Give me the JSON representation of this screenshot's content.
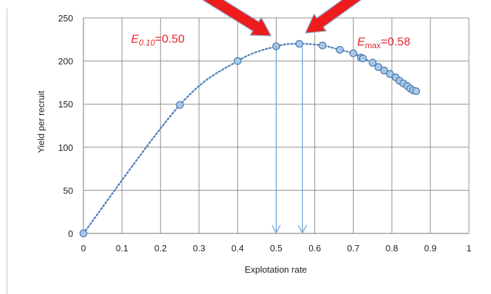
{
  "chart_data": {
    "type": "scatter",
    "title": "",
    "xlabel": "Explotation rate",
    "ylabel": "Yield per recruit",
    "xlim": [
      0,
      1
    ],
    "ylim": [
      0,
      250
    ],
    "x_ticks": [
      "0",
      "0.1",
      "0.2",
      "0.3",
      "0.4",
      "0.5",
      "0.6",
      "0.7",
      "0.8",
      "0.9",
      "1"
    ],
    "y_ticks": [
      "0",
      "50",
      "100",
      "150",
      "200",
      "250"
    ],
    "grid": true,
    "legend": "none",
    "marker_color": "#a8c8ea",
    "marker_edge_color": "#4a76a8",
    "line_color": "#4f81bd",
    "line_style": "dotted",
    "series": [
      {
        "x": [
          0,
          0.25,
          0.4,
          0.5,
          0.56,
          0.62,
          0.665,
          0.7,
          0.72,
          0.725,
          0.75,
          0.765,
          0.78,
          0.795,
          0.81,
          0.82,
          0.83,
          0.84,
          0.848,
          0.855,
          0.863
        ],
        "y": [
          0,
          149,
          200,
          217,
          220,
          218,
          213,
          209,
          204,
          203,
          198,
          193,
          189,
          185,
          181,
          177,
          174,
          171,
          168,
          166,
          165
        ]
      }
    ],
    "annotations": [
      {
        "prefix": "E",
        "subscript": "0.10",
        "suffix": "=0.50",
        "x": 0.5,
        "color": "#e8262b"
      },
      {
        "prefix": "E",
        "subscript": "max",
        "suffix": "=0.58",
        "x": 0.568,
        "color": "#e8262b"
      }
    ],
    "arrow_color": "#ee1c1c",
    "arrow_outline": "#8ea9c8",
    "drop_line_color": "#6aa0d4"
  }
}
